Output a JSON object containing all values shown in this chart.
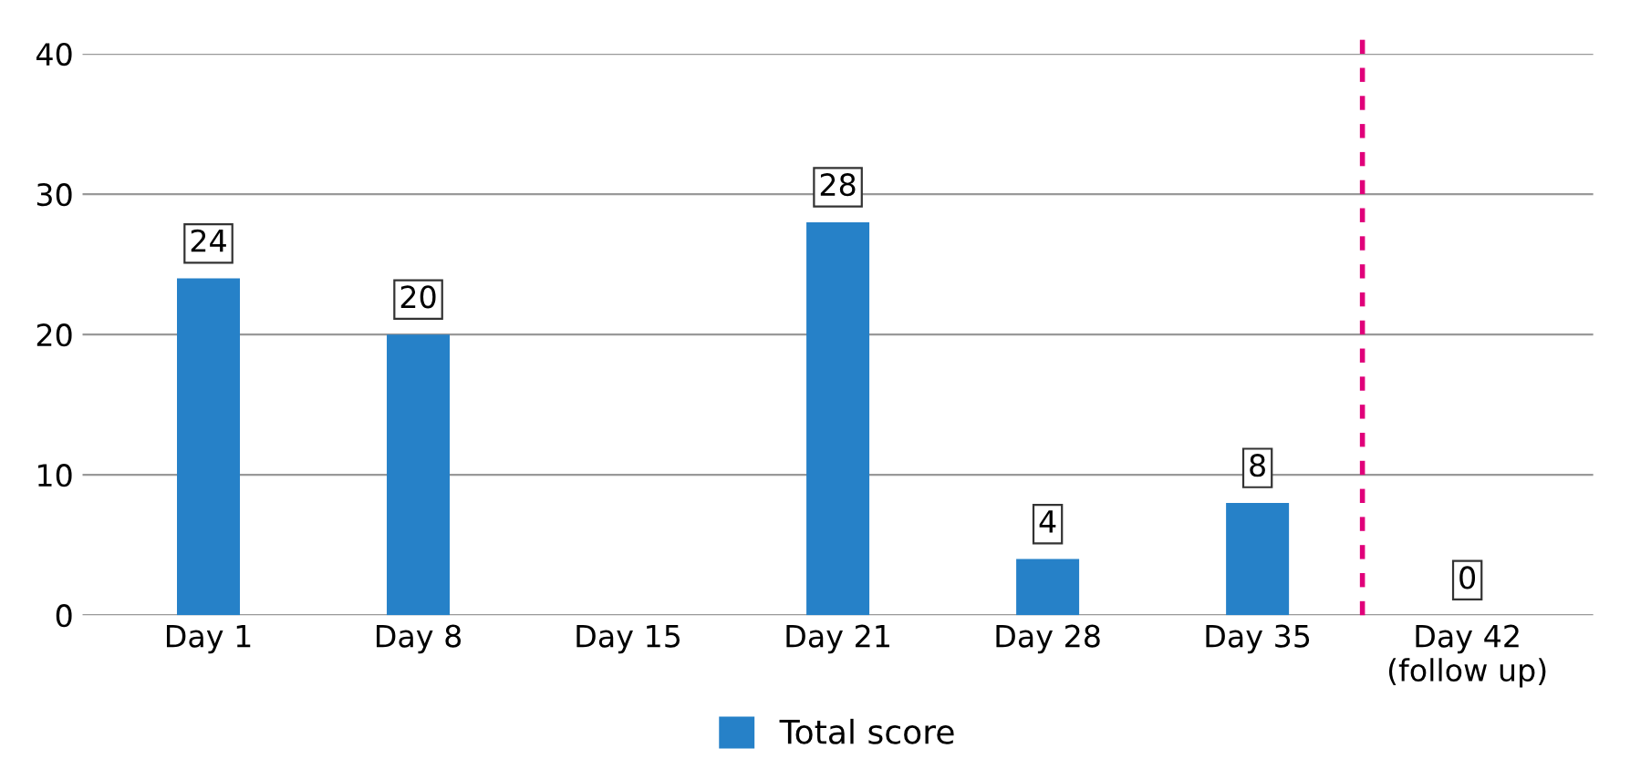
{
  "chart_data": {
    "type": "bar",
    "categories": [
      "Day 1",
      "Day 8",
      "Day 15",
      "Day 21",
      "Day 28",
      "Day 35",
      "Day 42\n(follow up)"
    ],
    "series": [
      {
        "name": "Total score",
        "color": "#2681c8",
        "values": [
          24,
          20,
          null,
          28,
          4,
          8,
          0
        ]
      }
    ],
    "ylim": [
      0,
      40
    ],
    "yticks": [
      0,
      10,
      20,
      30,
      40
    ],
    "grid": "y",
    "data_labels": true,
    "legend": "bottom"
  }
}
